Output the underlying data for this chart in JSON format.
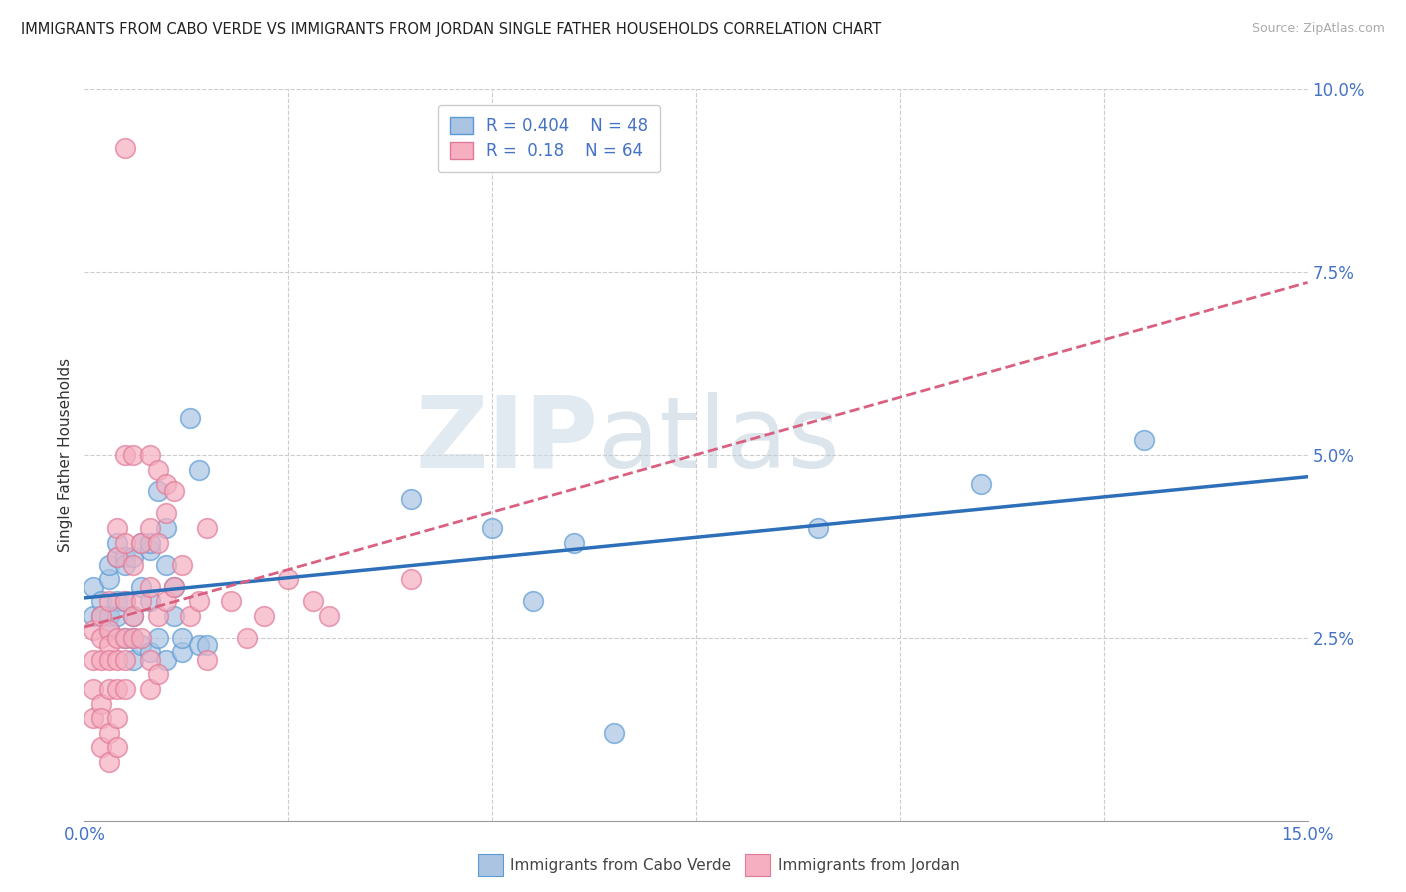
{
  "title": "IMMIGRANTS FROM CABO VERDE VS IMMIGRANTS FROM JORDAN SINGLE FATHER HOUSEHOLDS CORRELATION CHART",
  "source": "Source: ZipAtlas.com",
  "ylabel": "Single Father Households",
  "xlim": [
    0.0,
    0.15
  ],
  "ylim": [
    0.0,
    0.1
  ],
  "xticks": [
    0.0,
    0.025,
    0.05,
    0.075,
    0.1,
    0.125,
    0.15
  ],
  "xtick_labels": [
    "0.0%",
    "",
    "",
    "",
    "",
    "",
    "15.0%"
  ],
  "yticks": [
    0.025,
    0.05,
    0.075,
    0.1
  ],
  "ytick_labels": [
    "2.5%",
    "5.0%",
    "7.5%",
    "10.0%"
  ],
  "grid_color": "#cccccc",
  "background_color": "#ffffff",
  "watermark_zip": "ZIP",
  "watermark_atlas": "atlas",
  "cabo_verde_color": "#aac4e2",
  "jordan_color": "#f5afc0",
  "cabo_verde_edge_color": "#5b9bd5",
  "jordan_edge_color": "#e07a98",
  "cabo_verde_line_color": "#2e6fba",
  "jordan_line_color": "#d96080",
  "cabo_verde_R": 0.404,
  "jordan_R": 0.18,
  "cabo_verde_N": 48,
  "jordan_N": 64,
  "cabo_verde_scatter": [
    [
      0.001,
      0.028
    ],
    [
      0.001,
      0.032
    ],
    [
      0.002,
      0.03
    ],
    [
      0.002,
      0.028
    ],
    [
      0.003,
      0.033
    ],
    [
      0.003,
      0.035
    ],
    [
      0.003,
      0.028
    ],
    [
      0.003,
      0.026
    ],
    [
      0.004,
      0.03
    ],
    [
      0.004,
      0.028
    ],
    [
      0.004,
      0.036
    ],
    [
      0.004,
      0.038
    ],
    [
      0.005,
      0.036
    ],
    [
      0.005,
      0.03
    ],
    [
      0.005,
      0.035
    ],
    [
      0.005,
      0.025
    ],
    [
      0.006,
      0.022
    ],
    [
      0.006,
      0.036
    ],
    [
      0.006,
      0.028
    ],
    [
      0.006,
      0.025
    ],
    [
      0.007,
      0.032
    ],
    [
      0.007,
      0.024
    ],
    [
      0.007,
      0.038
    ],
    [
      0.008,
      0.037
    ],
    [
      0.008,
      0.03
    ],
    [
      0.008,
      0.023
    ],
    [
      0.008,
      0.038
    ],
    [
      0.009,
      0.025
    ],
    [
      0.009,
      0.045
    ],
    [
      0.01,
      0.035
    ],
    [
      0.01,
      0.022
    ],
    [
      0.01,
      0.04
    ],
    [
      0.011,
      0.032
    ],
    [
      0.011,
      0.028
    ],
    [
      0.012,
      0.023
    ],
    [
      0.012,
      0.025
    ],
    [
      0.013,
      0.055
    ],
    [
      0.014,
      0.048
    ],
    [
      0.014,
      0.024
    ],
    [
      0.015,
      0.024
    ],
    [
      0.04,
      0.044
    ],
    [
      0.05,
      0.04
    ],
    [
      0.055,
      0.03
    ],
    [
      0.06,
      0.038
    ],
    [
      0.065,
      0.012
    ],
    [
      0.09,
      0.04
    ],
    [
      0.11,
      0.046
    ],
    [
      0.13,
      0.052
    ]
  ],
  "jordan_scatter": [
    [
      0.001,
      0.026
    ],
    [
      0.001,
      0.022
    ],
    [
      0.001,
      0.018
    ],
    [
      0.001,
      0.014
    ],
    [
      0.002,
      0.028
    ],
    [
      0.002,
      0.025
    ],
    [
      0.002,
      0.022
    ],
    [
      0.002,
      0.016
    ],
    [
      0.002,
      0.014
    ],
    [
      0.002,
      0.01
    ],
    [
      0.003,
      0.03
    ],
    [
      0.003,
      0.026
    ],
    [
      0.003,
      0.024
    ],
    [
      0.003,
      0.022
    ],
    [
      0.003,
      0.018
    ],
    [
      0.003,
      0.012
    ],
    [
      0.003,
      0.008
    ],
    [
      0.004,
      0.04
    ],
    [
      0.004,
      0.036
    ],
    [
      0.004,
      0.025
    ],
    [
      0.004,
      0.022
    ],
    [
      0.004,
      0.018
    ],
    [
      0.004,
      0.014
    ],
    [
      0.004,
      0.01
    ],
    [
      0.005,
      0.05
    ],
    [
      0.005,
      0.038
    ],
    [
      0.005,
      0.03
    ],
    [
      0.005,
      0.025
    ],
    [
      0.005,
      0.022
    ],
    [
      0.005,
      0.018
    ],
    [
      0.006,
      0.05
    ],
    [
      0.006,
      0.035
    ],
    [
      0.006,
      0.028
    ],
    [
      0.006,
      0.025
    ],
    [
      0.007,
      0.038
    ],
    [
      0.007,
      0.03
    ],
    [
      0.007,
      0.025
    ],
    [
      0.008,
      0.05
    ],
    [
      0.008,
      0.04
    ],
    [
      0.008,
      0.032
    ],
    [
      0.008,
      0.022
    ],
    [
      0.008,
      0.018
    ],
    [
      0.009,
      0.048
    ],
    [
      0.009,
      0.038
    ],
    [
      0.009,
      0.028
    ],
    [
      0.009,
      0.02
    ],
    [
      0.01,
      0.046
    ],
    [
      0.01,
      0.042
    ],
    [
      0.01,
      0.03
    ],
    [
      0.011,
      0.045
    ],
    [
      0.011,
      0.032
    ],
    [
      0.012,
      0.035
    ],
    [
      0.013,
      0.028
    ],
    [
      0.014,
      0.03
    ],
    [
      0.015,
      0.04
    ],
    [
      0.015,
      0.022
    ],
    [
      0.018,
      0.03
    ],
    [
      0.02,
      0.025
    ],
    [
      0.022,
      0.028
    ],
    [
      0.025,
      0.033
    ],
    [
      0.028,
      0.03
    ],
    [
      0.03,
      0.028
    ],
    [
      0.04,
      0.033
    ],
    [
      0.005,
      0.092
    ]
  ]
}
